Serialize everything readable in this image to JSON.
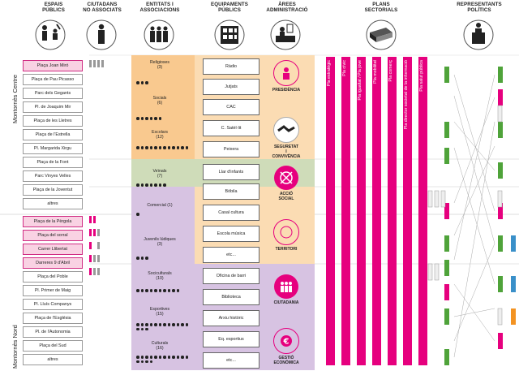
{
  "headers": [
    {
      "id": "espais",
      "text": "ESPAIS\nPÚBLICS"
    },
    {
      "id": "ciutadans",
      "text": "CIUTADANS\nNO ASSOCIATS"
    },
    {
      "id": "entitats",
      "text": "ENTITATS I\nASSOCIACIONS"
    },
    {
      "id": "equipaments",
      "text": "EQUIPAMENTS\nPÚBLICS"
    },
    {
      "id": "arees",
      "text": "ÀREES\nADMINISTRACIÓ"
    },
    {
      "id": "plans",
      "text": "PLANS\nSECTORIALS"
    },
    {
      "id": "representants",
      "text": "REPRESENTANTS\nPOLÍTICS"
    }
  ],
  "sides": {
    "centre": "Montornès Centre",
    "nord": "Montornès Nord"
  },
  "espais": [
    {
      "label": "Plaça Joan Miró",
      "hl": true
    },
    {
      "label": "Plaça de Pau Picasso",
      "hl": false
    },
    {
      "label": "Parc dels Gegants",
      "hl": false
    },
    {
      "label": "Pl. de Joaquim Mir",
      "hl": false
    },
    {
      "label": "Plaça de les Lletres",
      "hl": false
    },
    {
      "label": "Plaça de l'Estrella",
      "hl": false
    },
    {
      "label": "Pl. Margarida Xirgu",
      "hl": false
    },
    {
      "label": "Plaça de la Font",
      "hl": false
    },
    {
      "label": "Parc Vinyes Velles",
      "hl": false
    },
    {
      "label": "Plaça de la Joventut",
      "hl": false
    },
    {
      "label": "altres",
      "hl": false
    },
    {
      "label": "Plaça de la Pèrgola",
      "hl": true
    },
    {
      "label": "Plaça del sorral",
      "hl": true
    },
    {
      "label": "Carrer Llibertat",
      "hl": true
    },
    {
      "label": "Darreres 9 d'Abril",
      "hl": true
    },
    {
      "label": "Plaça del Poble",
      "hl": false
    },
    {
      "label": "Pl. Primer de Maig",
      "hl": false
    },
    {
      "label": "Pl. Lluís Companys",
      "hl": false
    },
    {
      "label": "Plaça de l'Església",
      "hl": false
    },
    {
      "label": "Pl. de l'Autonomia",
      "hl": false
    },
    {
      "label": "Plaça del Sud",
      "hl": false
    },
    {
      "label": "altres",
      "hl": false
    }
  ],
  "entitats": [
    {
      "name": "Religioses",
      "count": "(3)",
      "n": 3
    },
    {
      "name": "Socials",
      "count": "(6)",
      "n": 6
    },
    {
      "name": "Escolars",
      "count": "(12)",
      "n": 12
    },
    {
      "name": "Veïnals",
      "count": "(7)",
      "n": 7
    },
    {
      "name": "Comercial",
      "count": "(1)",
      "n": 1
    },
    {
      "name": "Juvenils lúdiques",
      "count": "(3)",
      "n": 3
    },
    {
      "name": "Sociculturals",
      "count": "(10)",
      "n": 10
    },
    {
      "name": "Esportives",
      "count": "(15)",
      "n": 15
    },
    {
      "name": "Culturals",
      "count": "(16)",
      "n": 16
    }
  ],
  "equipaments": [
    "Ràdio",
    "Jutjats",
    "CAC",
    "C. Satèl·lit",
    "Peixera",
    "Llar d'infants",
    "Bòbila",
    "Casal cultura",
    "Escola música",
    "etc...",
    "Oficina de barri",
    "Biblioteca",
    "Arxiu històric",
    "Eq. esportius",
    "etc..."
  ],
  "arees": [
    {
      "label": "PRESIDÈNCIA",
      "icon": "presidencia-icon"
    },
    {
      "label": "SEGURETAT\nI CONVIVÈNCIA",
      "icon": "handshake-icon"
    },
    {
      "label": "ACCIÓ SOCIAL",
      "icon": "accio-social-icon"
    },
    {
      "label": "TERRITORI",
      "icon": "territori-icon"
    },
    {
      "label": "CIUTADANIA",
      "icon": "ciutadania-icon"
    },
    {
      "label": "GESTIÓ\nECONÒMICA",
      "icon": "euro-icon"
    }
  ],
  "plans": [
    "Pla estratègic",
    "Pla cívic",
    "Pla igualtat / Pla jove",
    "Pla mobilitat",
    "Pla comerç",
    "Pla director societat de la informació",
    "Pla salut pública"
  ],
  "colors": {
    "magenta": "#e6007e",
    "orange": "#f9c98f",
    "green": "#cfdcb9",
    "purple": "#d7c3e2",
    "pink": "#f9d2e3"
  }
}
